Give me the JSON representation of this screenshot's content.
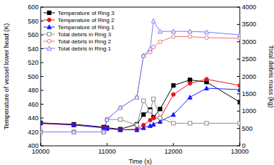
{
  "chart_data": {
    "type": "line",
    "x_label": "Time (s)",
    "y_label": "Temperature of vessel lower head (K)",
    "y2_label": "Total debris mass (kg)",
    "x": [
      10000,
      10500,
      10950,
      11000,
      11200,
      11450,
      11550,
      11650,
      11700,
      11800,
      12000,
      12250,
      12500,
      13000
    ],
    "xlim": [
      10000,
      13000
    ],
    "xticks": [
      10000,
      11000,
      12000,
      13000
    ],
    "ylim": [
      400,
      600
    ],
    "yticks": [
      400,
      420,
      440,
      460,
      480,
      500,
      520,
      540,
      560,
      580,
      600
    ],
    "y2lim": [
      0,
      4000
    ],
    "y2ticks": [
      0,
      500,
      1000,
      1500,
      2000,
      2500,
      3000,
      3500,
      4000
    ],
    "legend": "upper left",
    "series": [
      {
        "name": "Temperature of Ring 3",
        "color": "#000000",
        "marker": "square",
        "values": [
          433,
          431,
          427,
          426,
          424,
          431,
          445,
          452,
          441,
          453,
          487,
          495,
          492,
          463
        ]
      },
      {
        "name": "Temperature of Ring 2",
        "color": "#e8151b",
        "marker": "circle",
        "values": [
          432,
          430,
          426,
          425,
          423,
          424,
          430,
          437,
          440,
          440,
          474,
          490,
          496,
          487
        ]
      },
      {
        "name": "Temperature of Ring 1",
        "color": "#1a1aff",
        "marker": "triangle",
        "values": [
          433,
          430,
          426,
          425,
          423,
          423,
          426,
          429,
          431,
          435,
          445,
          470,
          483,
          481
        ]
      },
      {
        "name": "Total debris in Ring 3",
        "color": "#8c8c8c",
        "marker": "open-square",
        "axis": "y2",
        "values": [
          400,
          400,
          400,
          760,
          760,
          600,
          1300,
          1000,
          1350,
          800,
          650,
          650,
          650,
          650
        ]
      },
      {
        "name": "Total debris in Ring 2",
        "color": "#f07070",
        "marker": "open-circle",
        "axis": "y2",
        "values": [
          400,
          400,
          400,
          760,
          1100,
          1400,
          2600,
          2700,
          2850,
          3000,
          3150,
          3150,
          3120,
          3100
        ]
      },
      {
        "name": "Total debris in Ring 1",
        "color": "#7878ff",
        "marker": "open-triangle",
        "axis": "y2",
        "values": [
          400,
          400,
          400,
          760,
          1100,
          1400,
          2600,
          2800,
          3600,
          3300,
          3300,
          3300,
          3280,
          3200
        ]
      }
    ]
  }
}
